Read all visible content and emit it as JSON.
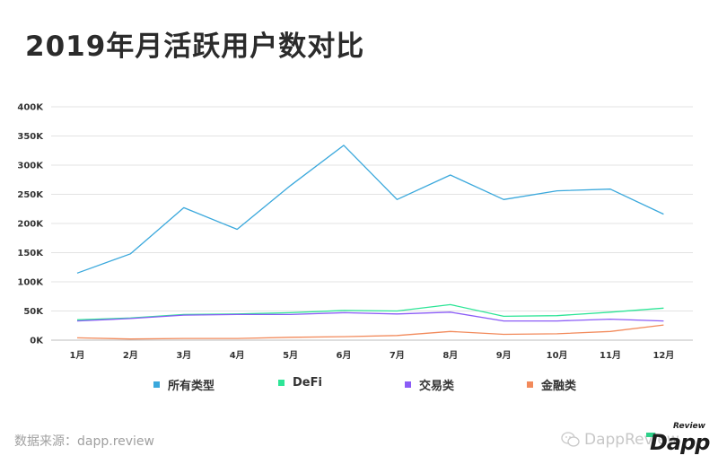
{
  "title": "2019年月活跃用户数对比",
  "source": "数据来源：dapp.review",
  "watermark": "DappReview",
  "logo": {
    "top": "Review",
    "main": "Dapp"
  },
  "chart_data": {
    "type": "line",
    "categories": [
      "1月",
      "2月",
      "3月",
      "4月",
      "5月",
      "6月",
      "7月",
      "8月",
      "9月",
      "10月",
      "11月",
      "12月"
    ],
    "y_tick_labels": [
      "0K",
      "50K",
      "100K",
      "150K",
      "200K",
      "250K",
      "300K",
      "350K",
      "400K"
    ],
    "ylim": [
      0,
      400000
    ],
    "legend_position": "bottom",
    "series": [
      {
        "name": "所有类型",
        "color": "#3aa8dc",
        "values": [
          115000,
          148000,
          227000,
          190000,
          265000,
          334000,
          241000,
          283000,
          241000,
          256000,
          259000,
          216000
        ]
      },
      {
        "name": "DeFi",
        "color": "#2ee597",
        "values": [
          35000,
          38000,
          44000,
          45000,
          47000,
          51000,
          50000,
          61000,
          41000,
          42000,
          48000,
          55000
        ]
      },
      {
        "name": "交易类",
        "color": "#8b5cf6",
        "values": [
          33000,
          37000,
          43000,
          44000,
          44000,
          47000,
          45000,
          48000,
          33000,
          33000,
          36000,
          33000
        ]
      },
      {
        "name": "金融类",
        "color": "#f28a5b",
        "values": [
          4000,
          2000,
          3000,
          3000,
          5000,
          6000,
          8000,
          15000,
          10000,
          11000,
          15000,
          26000
        ]
      }
    ]
  }
}
